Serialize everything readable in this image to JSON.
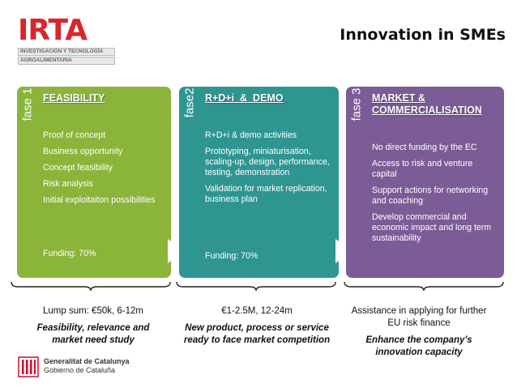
{
  "logo": {
    "word": "IRTA",
    "line1": "INVESTIGACIÓN Y TECNOLOGÍA",
    "line2": "AGROALIMENTARIA"
  },
  "title": "Innovation in SMEs",
  "phases": [
    {
      "phase_label": "fase 1",
      "title": "FEASIBILITY",
      "items": [
        "Proof of concept",
        "Business opportunity",
        "Concept feasibility",
        "Risk analysis",
        "Initial exploitaiton possibilities"
      ],
      "funding": "Funding: 70%",
      "color": "#8bb43b"
    },
    {
      "phase_label": "fase2",
      "title": "R+D+i  &  DEMO",
      "items": [
        "R+D+i & demo activities",
        "Prototyping, miniaturisation, scaling-up, design, performance, testing, demonstration",
        "Validation for market replication, business plan"
      ],
      "funding": "Funding: 70%",
      "color": "#2f9591"
    },
    {
      "phase_label": "fase 3",
      "title": "MARKET & COMMERCIALISATION",
      "items": [
        "No direct funding by the EC",
        "Access to risk and venture capital",
        "Support actions for networking and coaching",
        "Develop commercial and economic impact and long term sustainability"
      ],
      "funding": "",
      "color": "#7b5c97"
    }
  ],
  "bottom": [
    {
      "line": "Lump sum: €50k, 6-12m",
      "em": "Feasibility, relevance and market need study"
    },
    {
      "line": "€1-2.5M, 12-24m",
      "em": "New product, process or service ready to face  market competition"
    },
    {
      "line": "Assistance in applying for further EU risk finance",
      "em": "Enhance the company's innovation capacity"
    }
  ],
  "footer": {
    "line1": "Generalitat de Catalunya",
    "line2": "Gobierno de Cataluña"
  }
}
